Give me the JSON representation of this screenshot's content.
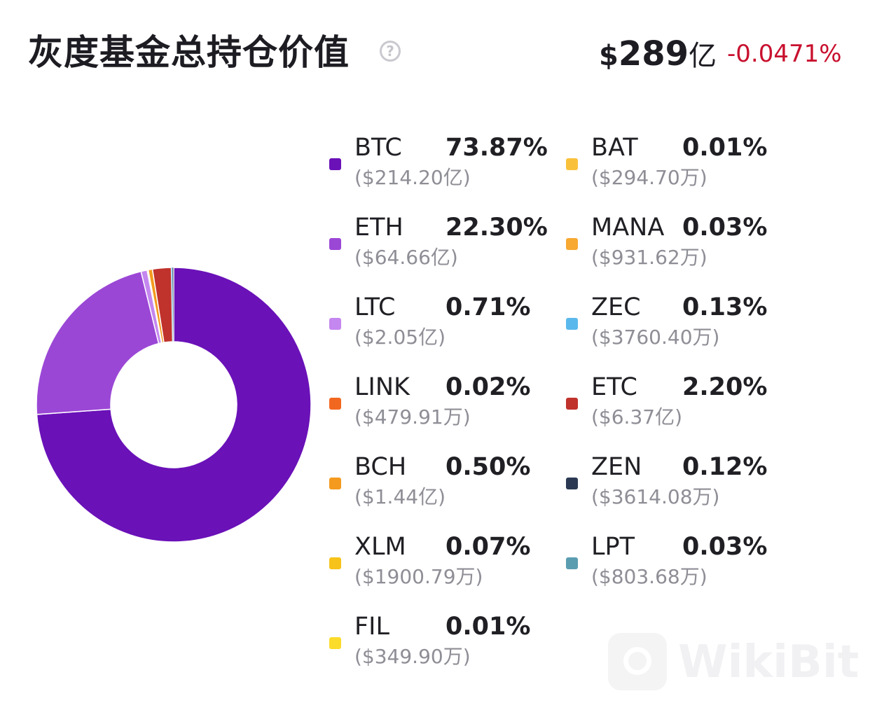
{
  "header": {
    "title": "灰度基金总持仓价值",
    "help_icon": "question-circle-icon",
    "total_currency": "$",
    "total_amount": "289",
    "total_unit": "亿",
    "change": "-0.0471%"
  },
  "watermark": {
    "text": "WikiBit"
  },
  "colors": {
    "change_negative": "#c8102e"
  },
  "chart_data": {
    "type": "pie",
    "donut": true,
    "legend_position": "right",
    "title": "",
    "start_angle": "top, clockwise",
    "slices": [
      {
        "name": "BTC",
        "percent": 73.87,
        "percent_label": "73.87%",
        "value_label": "($214.20亿)",
        "color": "#6a11b8"
      },
      {
        "name": "ETH",
        "percent": 22.3,
        "percent_label": "22.30%",
        "value_label": "($64.66亿)",
        "color": "#9b47d6"
      },
      {
        "name": "LTC",
        "percent": 0.71,
        "percent_label": "0.71%",
        "value_label": "($2.05亿)",
        "color": "#c486ef"
      },
      {
        "name": "LINK",
        "percent": 0.02,
        "percent_label": "0.02%",
        "value_label": "($479.91万)",
        "color": "#f2671f"
      },
      {
        "name": "BCH",
        "percent": 0.5,
        "percent_label": "0.50%",
        "value_label": "($1.44亿)",
        "color": "#f49a1f"
      },
      {
        "name": "XLM",
        "percent": 0.07,
        "percent_label": "0.07%",
        "value_label": "($1900.79万)",
        "color": "#f7c219"
      },
      {
        "name": "FIL",
        "percent": 0.01,
        "percent_label": "0.01%",
        "value_label": "($349.90万)",
        "color": "#fbdc2a"
      },
      {
        "name": "BAT",
        "percent": 0.01,
        "percent_label": "0.01%",
        "value_label": "($294.70万)",
        "color": "#f9c13b"
      },
      {
        "name": "MANA",
        "percent": 0.03,
        "percent_label": "0.03%",
        "value_label": "($931.62万)",
        "color": "#f7a932"
      },
      {
        "name": "ZEC",
        "percent": 0.13,
        "percent_label": "0.13%",
        "value_label": "($3760.40万)",
        "color": "#5bb8ec"
      },
      {
        "name": "ETC",
        "percent": 2.2,
        "percent_label": "2.20%",
        "value_label": "($6.37亿)",
        "color": "#c0322c"
      },
      {
        "name": "ZEN",
        "percent": 0.12,
        "percent_label": "0.12%",
        "value_label": "($3614.08万)",
        "color": "#2b3a52"
      },
      {
        "name": "LPT",
        "percent": 0.03,
        "percent_label": "0.03%",
        "value_label": "($803.68万)",
        "color": "#5b9db0"
      }
    ],
    "draw_order": [
      "BTC",
      "ETH",
      "LTC",
      "BAT",
      "FIL",
      "LINK",
      "MANA",
      "XLM",
      "BCH",
      "ETC",
      "ZEC",
      "ZEN",
      "LPT"
    ]
  }
}
